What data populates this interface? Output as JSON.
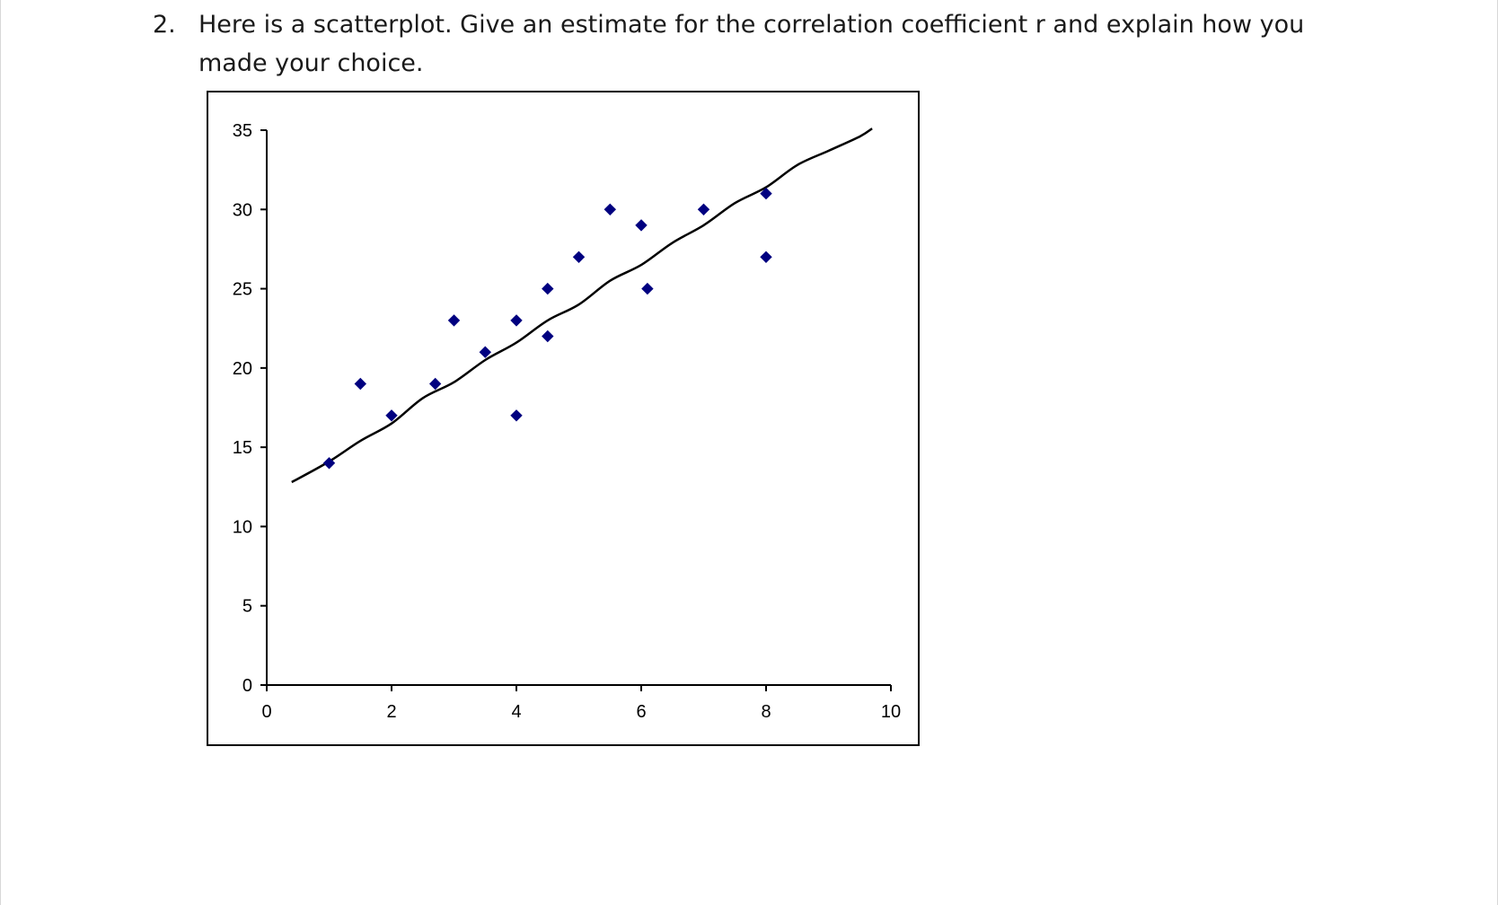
{
  "question": {
    "number": "2.",
    "text": "Here is a scatterplot.  Give an estimate for the correlation coefficient r and explain how you made your choice."
  },
  "chart_data": {
    "type": "scatter",
    "title": "",
    "xlabel": "",
    "ylabel": "",
    "xlim": [
      0,
      10
    ],
    "ylim": [
      0,
      35
    ],
    "x_ticks": [
      0,
      2,
      4,
      6,
      8,
      10
    ],
    "y_ticks": [
      0,
      5,
      10,
      15,
      20,
      25,
      30,
      35
    ],
    "grid": false,
    "legend": "none",
    "marker": "diamond",
    "marker_color": "#000080",
    "line_color": "#000000",
    "points": [
      {
        "x": 1,
        "y": 14
      },
      {
        "x": 1.5,
        "y": 19
      },
      {
        "x": 2,
        "y": 17
      },
      {
        "x": 2.7,
        "y": 19
      },
      {
        "x": 3,
        "y": 23
      },
      {
        "x": 3.5,
        "y": 21
      },
      {
        "x": 4,
        "y": 23
      },
      {
        "x": 4,
        "y": 17
      },
      {
        "x": 4.5,
        "y": 25
      },
      {
        "x": 4.5,
        "y": 22
      },
      {
        "x": 5,
        "y": 27
      },
      {
        "x": 5.5,
        "y": 30
      },
      {
        "x": 6,
        "y": 29
      },
      {
        "x": 6.1,
        "y": 25
      },
      {
        "x": 7,
        "y": 30
      },
      {
        "x": 8,
        "y": 31
      },
      {
        "x": 8,
        "y": 27
      }
    ],
    "trend_line": [
      {
        "x": 0.4,
        "y": 12.8
      },
      {
        "x": 1.0,
        "y": 14.1
      },
      {
        "x": 1.5,
        "y": 15.4
      },
      {
        "x": 2.0,
        "y": 16.5
      },
      {
        "x": 2.5,
        "y": 18.1
      },
      {
        "x": 3.0,
        "y": 19.1
      },
      {
        "x": 3.5,
        "y": 20.5
      },
      {
        "x": 4.0,
        "y": 21.6
      },
      {
        "x": 4.5,
        "y": 23.0
      },
      {
        "x": 5.0,
        "y": 24.0
      },
      {
        "x": 5.5,
        "y": 25.5
      },
      {
        "x": 6.0,
        "y": 26.5
      },
      {
        "x": 6.5,
        "y": 27.9
      },
      {
        "x": 7.0,
        "y": 29.0
      },
      {
        "x": 7.5,
        "y": 30.4
      },
      {
        "x": 8.0,
        "y": 31.4
      },
      {
        "x": 8.5,
        "y": 32.8
      },
      {
        "x": 9.0,
        "y": 33.7
      },
      {
        "x": 9.5,
        "y": 34.6
      },
      {
        "x": 9.7,
        "y": 35.1
      }
    ]
  }
}
